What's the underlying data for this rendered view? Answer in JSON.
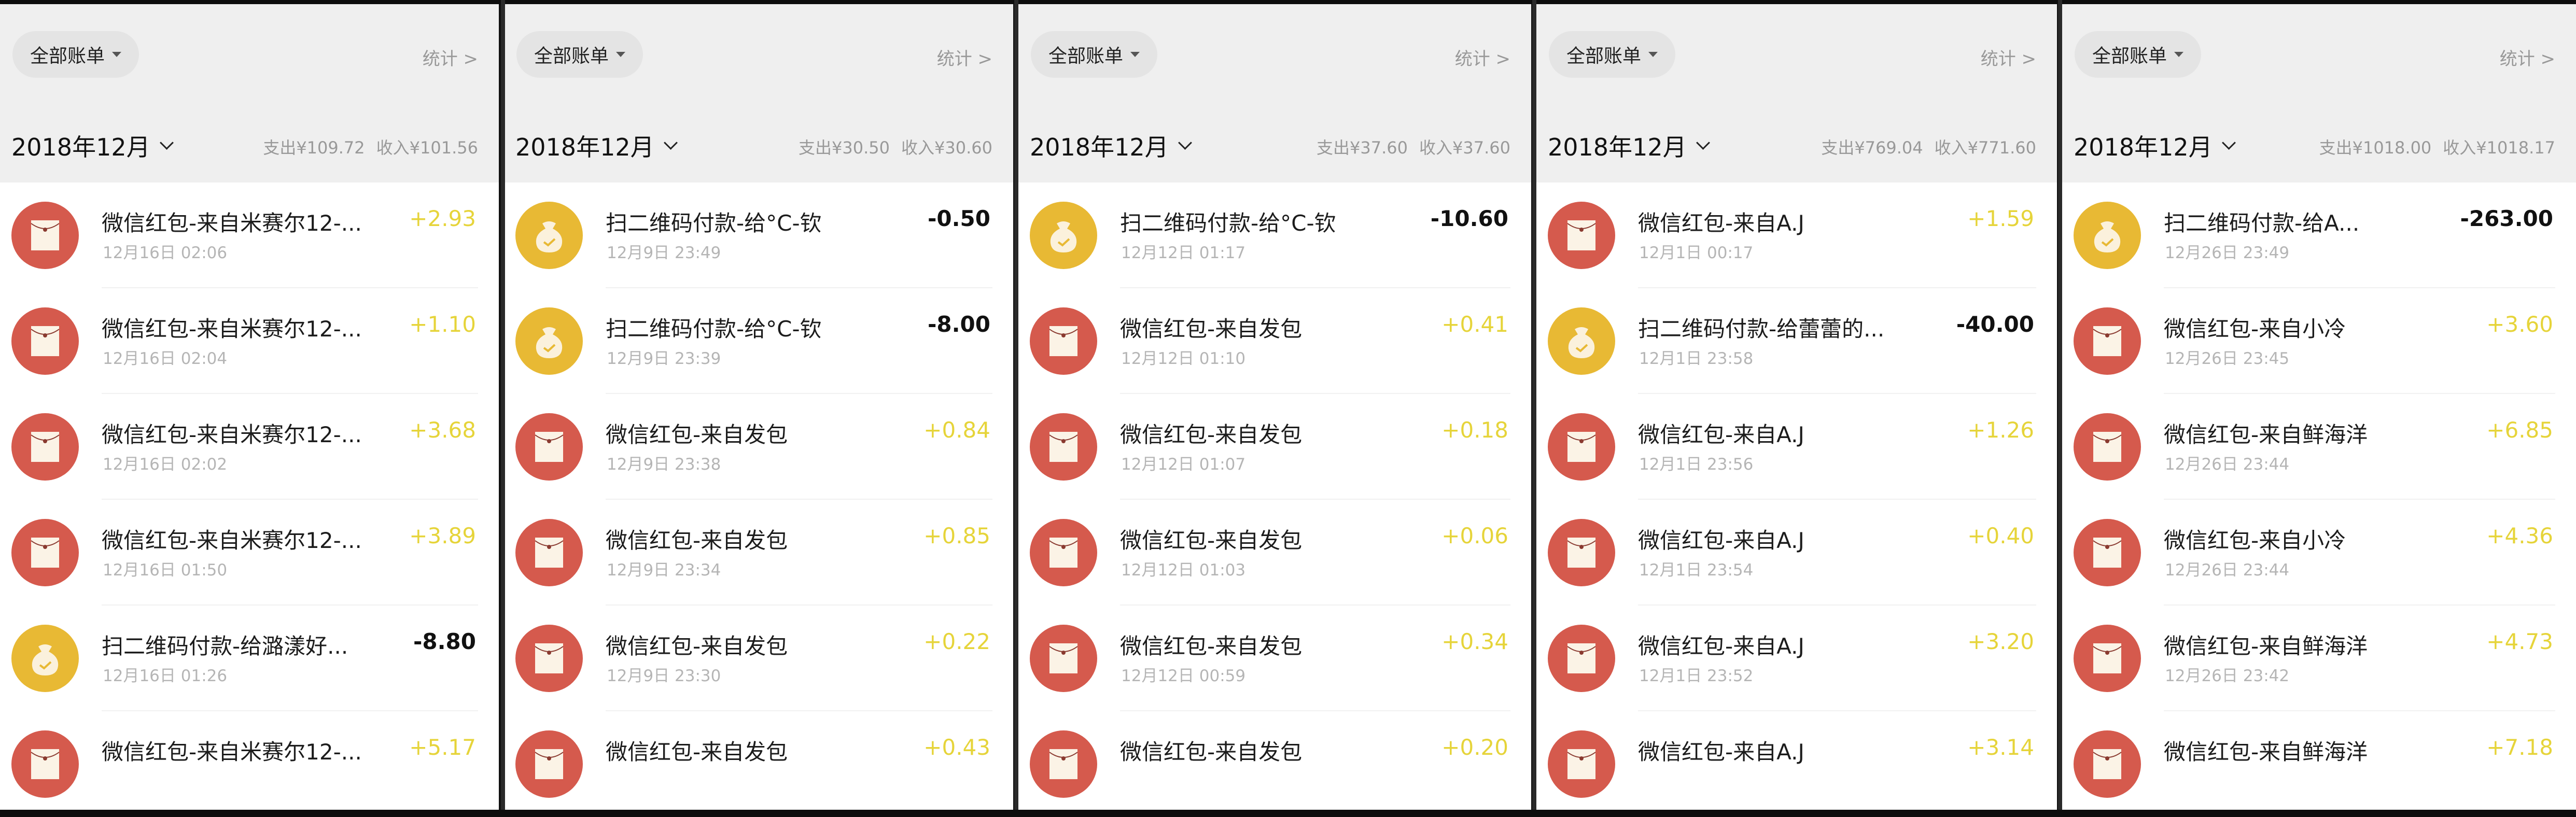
{
  "colors": {
    "redpacket_icon": "#d55a4d",
    "payment_icon": "#e8b934",
    "income_amount": "#e6d43a",
    "expense_amount": "#111111",
    "header_bg": "#efefef"
  },
  "panels": [
    {
      "filter_label": "全部账单",
      "stats_label": "统计 >",
      "month": "2018年12月",
      "expense": "支出¥109.72",
      "income": "收入¥101.56",
      "rows": [
        {
          "type": "red-packet",
          "icon": "red-envelope-icon",
          "title": "微信红包-来自米赛尔12-...",
          "date": "12月16日 02:06",
          "amount": "+2.93"
        },
        {
          "type": "red-packet",
          "icon": "red-envelope-icon",
          "title": "微信红包-来自米赛尔12-...",
          "date": "12月16日 02:04",
          "amount": "+1.10"
        },
        {
          "type": "red-packet",
          "icon": "red-envelope-icon",
          "title": "微信红包-来自米赛尔12-...",
          "date": "12月16日 02:02",
          "amount": "+3.68"
        },
        {
          "type": "red-packet",
          "icon": "red-envelope-icon",
          "title": "微信红包-来自米赛尔12-...",
          "date": "12月16日 01:50",
          "amount": "+3.89"
        },
        {
          "type": "payment",
          "icon": "money-bag-icon",
          "title": "扫二维码付款-给潞漾好...",
          "date": "12月16日 01:26",
          "amount": "-8.80"
        },
        {
          "type": "red-packet",
          "icon": "red-envelope-icon",
          "title": "微信红包-来自米赛尔12-...",
          "date": "",
          "amount": "+5.17"
        }
      ]
    },
    {
      "filter_label": "全部账单",
      "stats_label": "统计 >",
      "month": "2018年12月",
      "expense": "支出¥30.50",
      "income": "收入¥30.60",
      "rows": [
        {
          "type": "payment",
          "icon": "money-bag-icon",
          "title": "扫二维码付款-给°C-钦",
          "date": "12月9日 23:49",
          "amount": "-0.50"
        },
        {
          "type": "payment",
          "icon": "money-bag-icon",
          "title": "扫二维码付款-给°C-钦",
          "date": "12月9日 23:39",
          "amount": "-8.00"
        },
        {
          "type": "red-packet",
          "icon": "red-envelope-icon",
          "title": "微信红包-来自发包",
          "date": "12月9日 23:38",
          "amount": "+0.84"
        },
        {
          "type": "red-packet",
          "icon": "red-envelope-icon",
          "title": "微信红包-来自发包",
          "date": "12月9日 23:34",
          "amount": "+0.85"
        },
        {
          "type": "red-packet",
          "icon": "red-envelope-icon",
          "title": "微信红包-来自发包",
          "date": "12月9日 23:30",
          "amount": "+0.22"
        },
        {
          "type": "red-packet",
          "icon": "red-envelope-icon",
          "title": "微信红包-来自发包",
          "date": "",
          "amount": "+0.43"
        }
      ]
    },
    {
      "filter_label": "全部账单",
      "stats_label": "统计 >",
      "month": "2018年12月",
      "expense": "支出¥37.60",
      "income": "收入¥37.60",
      "rows": [
        {
          "type": "payment",
          "icon": "money-bag-icon",
          "title": "扫二维码付款-给°C-钦",
          "date": "12月12日 01:17",
          "amount": "-10.60"
        },
        {
          "type": "red-packet",
          "icon": "red-envelope-icon",
          "title": "微信红包-来自发包",
          "date": "12月12日 01:10",
          "amount": "+0.41"
        },
        {
          "type": "red-packet",
          "icon": "red-envelope-icon",
          "title": "微信红包-来自发包",
          "date": "12月12日 01:07",
          "amount": "+0.18"
        },
        {
          "type": "red-packet",
          "icon": "red-envelope-icon",
          "title": "微信红包-来自发包",
          "date": "12月12日 01:03",
          "amount": "+0.06"
        },
        {
          "type": "red-packet",
          "icon": "red-envelope-icon",
          "title": "微信红包-来自发包",
          "date": "12月12日 00:59",
          "amount": "+0.34"
        },
        {
          "type": "red-packet",
          "icon": "red-envelope-icon",
          "title": "微信红包-来自发包",
          "date": "",
          "amount": "+0.20"
        }
      ]
    },
    {
      "filter_label": "全部账单",
      "stats_label": "统计 >",
      "month": "2018年12月",
      "expense": "支出¥769.04",
      "income": "收入¥771.60",
      "rows": [
        {
          "type": "red-packet",
          "icon": "red-envelope-icon",
          "title": "微信红包-来自A.J",
          "date": "12月1日 00:17",
          "amount": "+1.59"
        },
        {
          "type": "payment",
          "icon": "money-bag-icon",
          "title": "扫二维码付款-给蕾蕾的...",
          "date": "12月1日 23:58",
          "amount": "-40.00"
        },
        {
          "type": "red-packet",
          "icon": "red-envelope-icon",
          "title": "微信红包-来自A.J",
          "date": "12月1日 23:56",
          "amount": "+1.26"
        },
        {
          "type": "red-packet",
          "icon": "red-envelope-icon",
          "title": "微信红包-来自A.J",
          "date": "12月1日 23:54",
          "amount": "+0.40"
        },
        {
          "type": "red-packet",
          "icon": "red-envelope-icon",
          "title": "微信红包-来自A.J",
          "date": "12月1日 23:52",
          "amount": "+3.20"
        },
        {
          "type": "red-packet",
          "icon": "red-envelope-icon",
          "title": "微信红包-来自A.J",
          "date": "",
          "amount": "+3.14"
        }
      ]
    },
    {
      "filter_label": "全部账单",
      "stats_label": "统计 >",
      "month": "2018年12月",
      "expense": "支出¥1018.00",
      "income": "收入¥1018.17",
      "rows": [
        {
          "type": "payment",
          "icon": "money-bag-icon",
          "title": "扫二维码付款-给A...",
          "date": "12月26日 23:49",
          "amount": "-263.00"
        },
        {
          "type": "red-packet",
          "icon": "red-envelope-icon",
          "title": "微信红包-来自小冷",
          "date": "12月26日 23:45",
          "amount": "+3.60"
        },
        {
          "type": "red-packet",
          "icon": "red-envelope-icon",
          "title": "微信红包-来自鲜海洋",
          "date": "12月26日 23:44",
          "amount": "+6.85"
        },
        {
          "type": "red-packet",
          "icon": "red-envelope-icon",
          "title": "微信红包-来自小冷",
          "date": "12月26日 23:44",
          "amount": "+4.36"
        },
        {
          "type": "red-packet",
          "icon": "red-envelope-icon",
          "title": "微信红包-来自鲜海洋",
          "date": "12月26日 23:42",
          "amount": "+4.73"
        },
        {
          "type": "red-packet",
          "icon": "red-envelope-icon",
          "title": "微信红包-来自鲜海洋",
          "date": "",
          "amount": "+7.18"
        }
      ]
    }
  ]
}
